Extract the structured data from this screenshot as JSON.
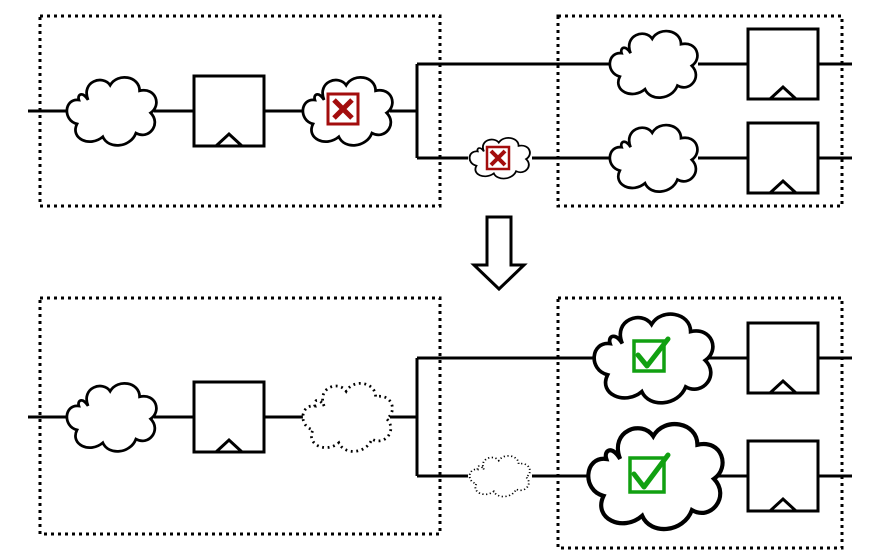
{
  "colors": {
    "stroke": "#000000",
    "fail": "#a30d0d",
    "pass": "#11a011",
    "background": "#ffffff"
  },
  "icons": {
    "fail": "x-mark-icon",
    "pass": "check-mark-icon",
    "transition": "down-arrow-icon",
    "clock": "clock-triangle-icon",
    "logic": "cloud-icon"
  },
  "before": {
    "input_cloud_status": "normal",
    "middle_cloud_status": "failing",
    "branch_cloud_status": "failing",
    "upper_right_cloud_status": "normal",
    "lower_right_cloud_status": "normal"
  },
  "after": {
    "input_cloud_status": "normal",
    "middle_cloud_status": "removed",
    "branch_cloud_status": "removed",
    "upper_right_cloud_status": "passing",
    "lower_right_cloud_status": "passing"
  }
}
